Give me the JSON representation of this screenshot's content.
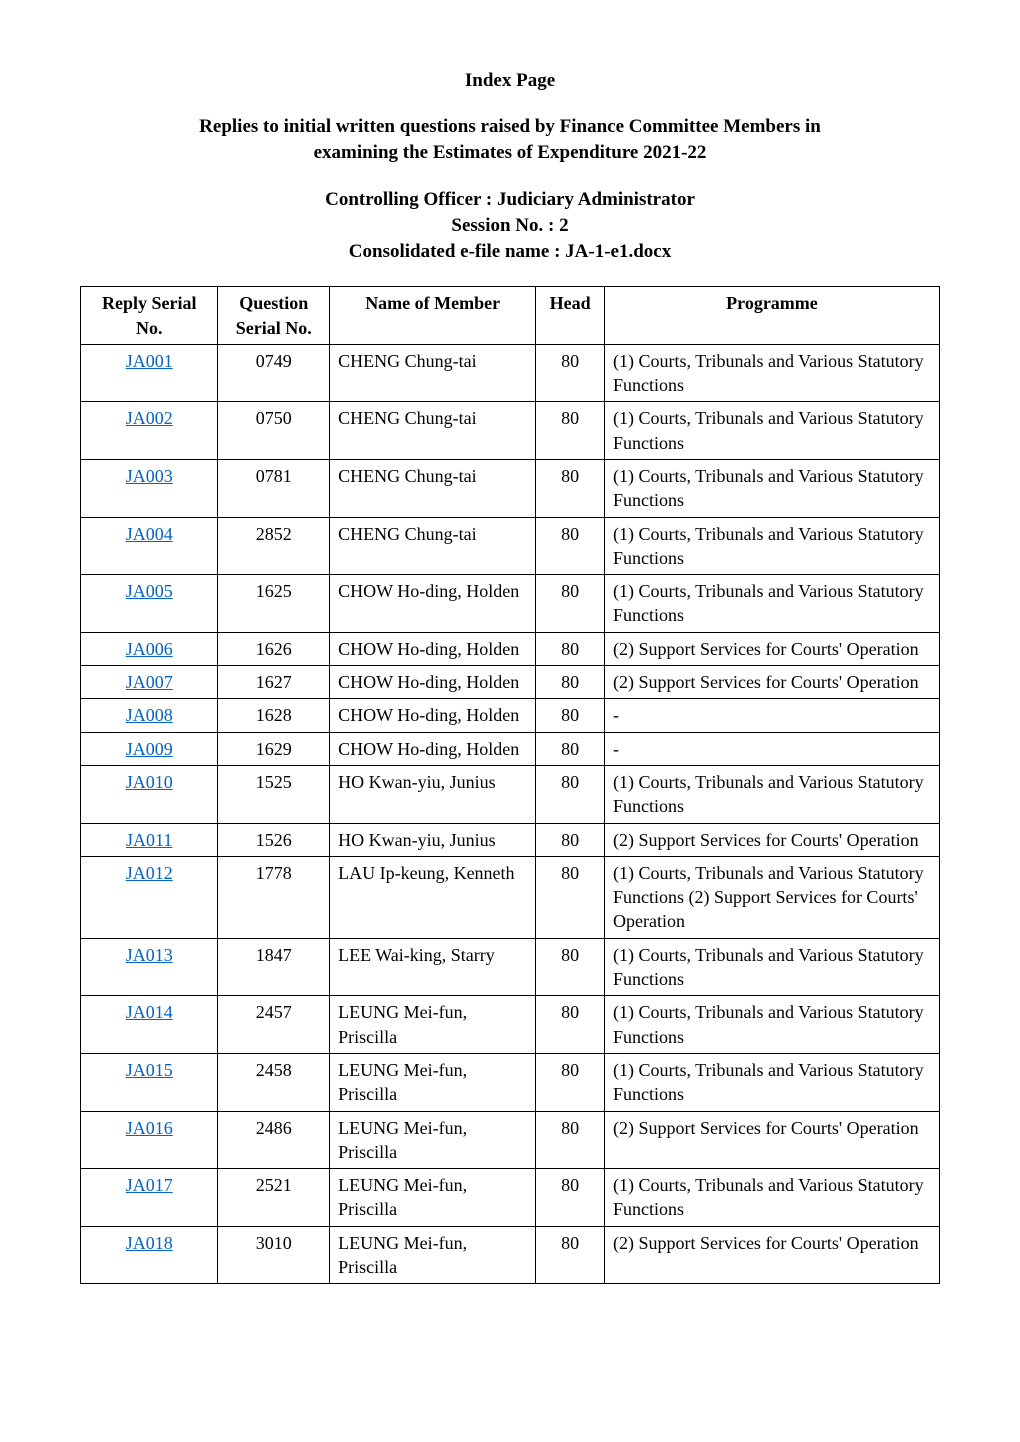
{
  "title": "Index Page",
  "subtitle_line1": "Replies to initial written questions raised by Finance Committee Members in",
  "subtitle_line2": "examining the Estimates of Expenditure 2021-22",
  "officer_line1": "Controlling Officer : Judiciary Administrator",
  "officer_line2": "Session No. : 2",
  "officer_line3": "Consolidated e-file name : JA-1-e1.docx",
  "colors": {
    "link": "#0563c1",
    "border": "#000000",
    "background": "#ffffff",
    "text": "#000000"
  },
  "table": {
    "headers": {
      "reply_line1": "Reply Serial",
      "reply_line2": "No.",
      "question_line1": "Question",
      "question_line2": "Serial No.",
      "member": "Name of Member",
      "head": "Head",
      "programme": "Programme"
    },
    "rows": [
      {
        "reply": "JA001",
        "question": "0749",
        "member": "CHENG Chung-tai",
        "head": "80",
        "programme": "(1) Courts, Tribunals and Various Statutory Functions"
      },
      {
        "reply": "JA002",
        "question": "0750",
        "member": "CHENG Chung-tai",
        "head": "80",
        "programme": "(1) Courts, Tribunals and Various Statutory Functions"
      },
      {
        "reply": "JA003",
        "question": "0781",
        "member": "CHENG Chung-tai",
        "head": "80",
        "programme": "(1) Courts, Tribunals and Various Statutory Functions"
      },
      {
        "reply": "JA004",
        "question": "2852",
        "member": "CHENG Chung-tai",
        "head": "80",
        "programme": "(1) Courts, Tribunals and Various Statutory Functions"
      },
      {
        "reply": "JA005",
        "question": "1625",
        "member": "CHOW Ho-ding, Holden",
        "head": "80",
        "programme": "(1) Courts, Tribunals and Various Statutory Functions"
      },
      {
        "reply": "JA006",
        "question": "1626",
        "member": "CHOW Ho-ding, Holden",
        "head": "80",
        "programme": "(2) Support Services for Courts' Operation"
      },
      {
        "reply": "JA007",
        "question": "1627",
        "member": "CHOW Ho-ding, Holden",
        "head": "80",
        "programme": "(2) Support Services for Courts' Operation"
      },
      {
        "reply": "JA008",
        "question": "1628",
        "member": "CHOW Ho-ding, Holden",
        "head": "80",
        "programme": "-"
      },
      {
        "reply": "JA009",
        "question": "1629",
        "member": "CHOW Ho-ding, Holden",
        "head": "80",
        "programme": "-"
      },
      {
        "reply": "JA010",
        "question": "1525",
        "member": "HO Kwan-yiu, Junius",
        "head": "80",
        "programme": "(1) Courts, Tribunals and Various Statutory Functions"
      },
      {
        "reply": "JA011",
        "question": "1526",
        "member": "HO Kwan-yiu, Junius",
        "head": "80",
        "programme": "(2) Support Services for Courts' Operation"
      },
      {
        "reply": "JA012",
        "question": "1778",
        "member": "LAU Ip-keung, Kenneth",
        "head": "80",
        "programme": "(1) Courts, Tribunals and Various Statutory Functions (2) Support Services for Courts' Operation"
      },
      {
        "reply": "JA013",
        "question": "1847",
        "member": "LEE Wai-king, Starry",
        "head": "80",
        "programme": "(1) Courts, Tribunals and Various Statutory Functions"
      },
      {
        "reply": "JA014",
        "question": "2457",
        "member": "LEUNG Mei-fun, Priscilla",
        "head": "80",
        "programme": "(1) Courts, Tribunals and Various Statutory Functions"
      },
      {
        "reply": "JA015",
        "question": "2458",
        "member": "LEUNG Mei-fun, Priscilla",
        "head": "80",
        "programme": "(1) Courts, Tribunals and Various Statutory Functions"
      },
      {
        "reply": "JA016",
        "question": "2486",
        "member": "LEUNG Mei-fun, Priscilla",
        "head": "80",
        "programme": "(2) Support Services for Courts' Operation"
      },
      {
        "reply": "JA017",
        "question": "2521",
        "member": "LEUNG Mei-fun, Priscilla",
        "head": "80",
        "programme": "(1) Courts, Tribunals and Various Statutory Functions"
      },
      {
        "reply": "JA018",
        "question": "3010",
        "member": "LEUNG Mei-fun, Priscilla",
        "head": "80",
        "programme": "(2) Support Services for Courts' Operation"
      }
    ]
  }
}
